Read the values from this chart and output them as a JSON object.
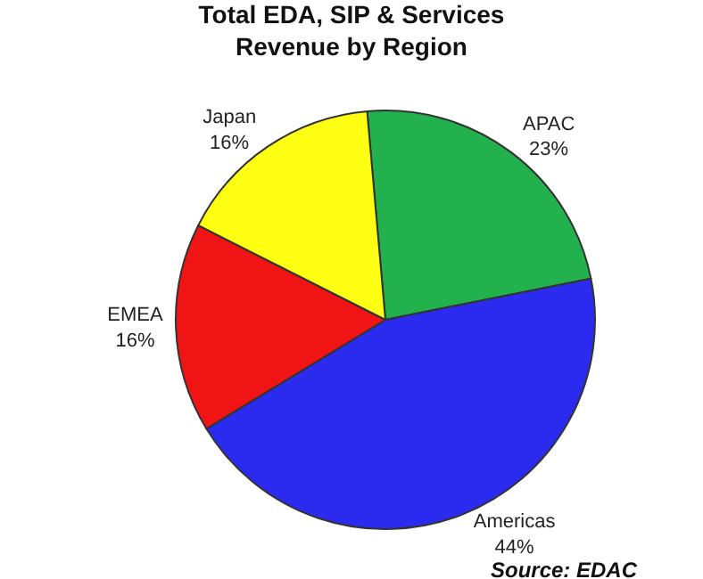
{
  "chart_data": {
    "type": "pie",
    "title": "Total EDA, SIP & Services\nRevenue by Region",
    "categories": [
      "APAC",
      "Americas",
      "EMEA",
      "Japan"
    ],
    "values": [
      23,
      44,
      16,
      16
    ],
    "value_labels": [
      "23%",
      "44%",
      "16%",
      "16%"
    ],
    "colors": [
      "#22b14c",
      "#2b2bf0",
      "#f01414",
      "#ffff14"
    ],
    "annotations": [
      "Source: EDAC"
    ],
    "legend": false
  }
}
